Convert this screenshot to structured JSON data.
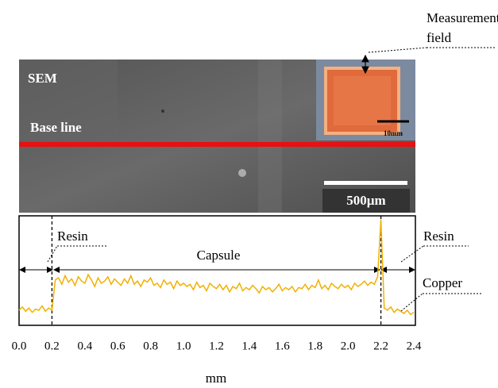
{
  "chart_data": {
    "type": "line",
    "xlabel": "mm",
    "color": "#f2b000",
    "x": [
      0,
      0.02,
      0.04,
      0.06,
      0.08,
      0.1,
      0.12,
      0.14,
      0.16,
      0.18,
      0.2,
      0.22,
      0.24,
      0.26,
      0.28,
      0.3,
      0.32,
      0.34,
      0.36,
      0.38,
      0.4,
      0.42,
      0.44,
      0.46,
      0.48,
      0.5,
      0.52,
      0.54,
      0.56,
      0.58,
      0.6,
      0.62,
      0.64,
      0.66,
      0.68,
      0.7,
      0.72,
      0.74,
      0.76,
      0.78,
      0.8,
      0.82,
      0.84,
      0.86,
      0.88,
      0.9,
      0.92,
      0.94,
      0.96,
      0.98,
      1,
      1.02,
      1.04,
      1.06,
      1.08,
      1.1,
      1.12,
      1.14,
      1.16,
      1.18,
      1.2,
      1.22,
      1.24,
      1.26,
      1.28,
      1.3,
      1.32,
      1.34,
      1.36,
      1.38,
      1.4,
      1.42,
      1.44,
      1.46,
      1.48,
      1.5,
      1.52,
      1.54,
      1.56,
      1.58,
      1.6,
      1.62,
      1.64,
      1.66,
      1.68,
      1.7,
      1.72,
      1.74,
      1.76,
      1.78,
      1.8,
      1.82,
      1.84,
      1.86,
      1.88,
      1.9,
      1.92,
      1.94,
      1.96,
      1.98,
      2,
      2.02,
      2.04,
      2.06,
      2.08,
      2.1,
      2.12,
      2.14,
      2.16,
      2.18,
      2.2,
      2.22,
      2.24,
      2.26,
      2.28,
      2.3,
      2.32,
      2.34,
      2.36,
      2.38,
      2.4
    ],
    "values": [
      14,
      17,
      13,
      16,
      12,
      15,
      14,
      18,
      13,
      16,
      14,
      42,
      44,
      38,
      46,
      40,
      43,
      37,
      45,
      41,
      39,
      47,
      42,
      36,
      44,
      39,
      41,
      45,
      38,
      43,
      40,
      37,
      43,
      39,
      46,
      38,
      41,
      36,
      42,
      40,
      44,
      37,
      39,
      35,
      42,
      38,
      40,
      34,
      41,
      37,
      39,
      36,
      38,
      33,
      40,
      35,
      37,
      32,
      39,
      36,
      34,
      38,
      33,
      37,
      31,
      36,
      34,
      39,
      32,
      35,
      33,
      37,
      34,
      30,
      36,
      33,
      35,
      31,
      34,
      38,
      32,
      35,
      33,
      36,
      31,
      35,
      34,
      38,
      33,
      37,
      35,
      42,
      34,
      37,
      33,
      39,
      36,
      34,
      38,
      35,
      37,
      33,
      39,
      36,
      38,
      41,
      37,
      40,
      38,
      45,
      98,
      16,
      14,
      17,
      12,
      15,
      13,
      11,
      14,
      10,
      12
    ],
    "xlim": [
      0,
      2.4
    ],
    "ylim": [
      0,
      100
    ],
    "xticks": [
      {
        "value": 0,
        "label": "0.0"
      },
      0.2,
      0.4,
      0.6,
      0.8,
      {
        "value": 1,
        "label": "1.0"
      },
      1.2,
      1.4,
      1.6,
      1.8,
      {
        "value": 2,
        "label": "2.0"
      },
      2.2,
      2.4
    ],
    "boundaries": [
      0.2,
      2.2
    ],
    "annotations": [
      "SEM",
      "Base line",
      "500µm",
      "10mm",
      "Measurement",
      "field",
      "Resin",
      "Capsule",
      "Resin",
      "Copper"
    ]
  }
}
